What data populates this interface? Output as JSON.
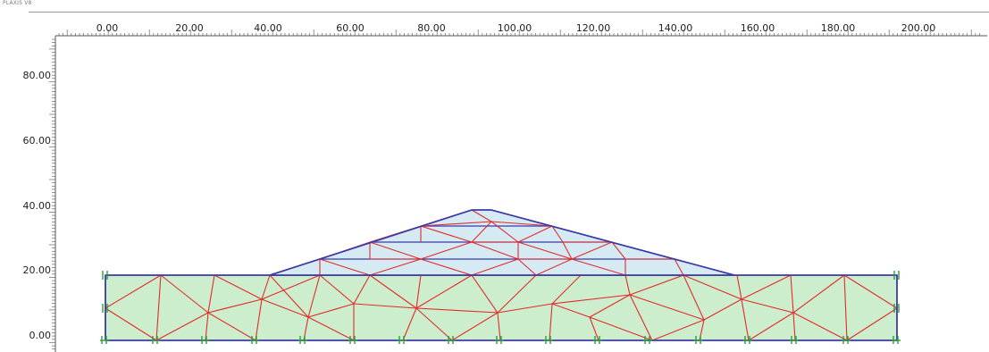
{
  "app": {
    "title": "PLAXIS V8"
  },
  "rulers": {
    "x_labels": [
      "0.00",
      "20.00",
      "40.00",
      "60.00",
      "80.00",
      "100.00",
      "120.00",
      "140.00",
      "160.00",
      "180.00",
      "200.00"
    ],
    "y_labels": [
      "80.00",
      "60.00",
      "40.00",
      "20.00",
      "0.00"
    ]
  },
  "colors": {
    "foundation_fill": "#cdeecd",
    "embankment_fill": "#d6eaf4",
    "boundary": "#3a3aa8",
    "mesh": "#e22a2a",
    "fixity": "#2e9a3e",
    "ruler": "#555555"
  },
  "model": {
    "geometry_lines_units": "m",
    "foundation": {
      "x_min": 0,
      "x_max": 193,
      "y_min": 0,
      "y_max": 20
    },
    "embankment_crest": {
      "x_left": 89,
      "x_right": 94,
      "y": 40
    },
    "embankment_toe": {
      "x_left": 40,
      "x_right": 153,
      "y": 20
    },
    "layer_levels": [
      25,
      30,
      35
    ]
  }
}
